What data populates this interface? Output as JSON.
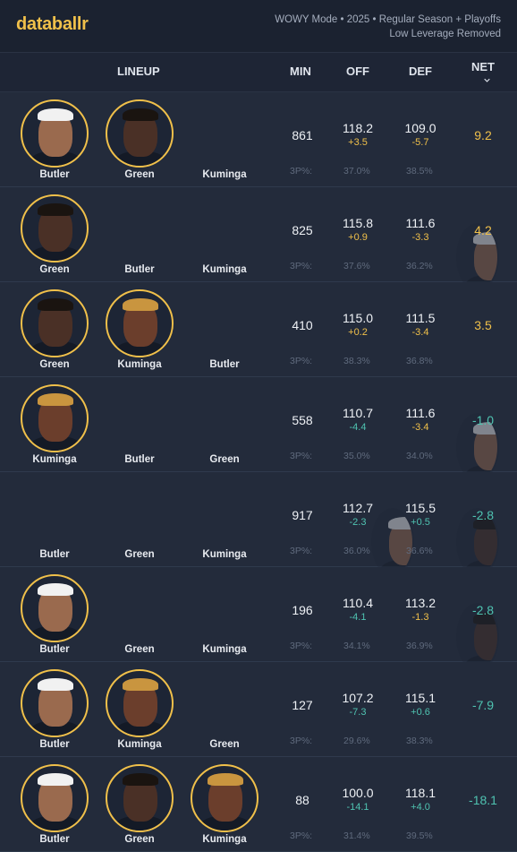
{
  "app": {
    "logo": "databallr",
    "meta_line1": "WOWY Mode • 2025 • Regular Season + Playoffs",
    "meta_line2": "Low Leverage Removed"
  },
  "columns": {
    "lineup": "LINEUP",
    "min": "MIN",
    "off": "OFF",
    "def": "DEF",
    "net": "NET"
  },
  "colors": {
    "accent": "#f0c04a",
    "negative": "#4fc3b1",
    "background": "#1c2331"
  },
  "rows": [
    {
      "players": [
        {
          "name": "Butler",
          "on": true
        },
        {
          "name": "Green",
          "on": true
        },
        {
          "name": "Kuminga",
          "on": false
        }
      ],
      "min": "861",
      "off": "118.2",
      "off_delta": "+3.5",
      "def": "109.0",
      "def_delta": "-5.7",
      "three_label": "3P%:",
      "off_3p": "37.0%",
      "def_3p": "38.5%",
      "net": "9.2",
      "net_sign": "pos"
    },
    {
      "players": [
        {
          "name": "Green",
          "on": true
        },
        {
          "name": "Butler",
          "on": false
        },
        {
          "name": "Kuminga",
          "on": false
        }
      ],
      "min": "825",
      "off": "115.8",
      "off_delta": "+0.9",
      "def": "111.6",
      "def_delta": "-3.3",
      "three_label": "3P%:",
      "off_3p": "37.6%",
      "def_3p": "36.2%",
      "net": "4.2",
      "net_sign": "pos"
    },
    {
      "players": [
        {
          "name": "Green",
          "on": true
        },
        {
          "name": "Kuminga",
          "on": true
        },
        {
          "name": "Butler",
          "on": false
        }
      ],
      "min": "410",
      "off": "115.0",
      "off_delta": "+0.2",
      "def": "111.5",
      "def_delta": "-3.4",
      "three_label": "3P%:",
      "off_3p": "38.3%",
      "def_3p": "36.8%",
      "net": "3.5",
      "net_sign": "pos"
    },
    {
      "players": [
        {
          "name": "Kuminga",
          "on": true
        },
        {
          "name": "Butler",
          "on": false
        },
        {
          "name": "Green",
          "on": false
        }
      ],
      "min": "558",
      "off": "110.7",
      "off_delta": "-4.4",
      "def": "111.6",
      "def_delta": "-3.4",
      "three_label": "3P%:",
      "off_3p": "35.0%",
      "def_3p": "34.0%",
      "net": "-1.0",
      "net_sign": "neg"
    },
    {
      "players": [
        {
          "name": "Butler",
          "on": false
        },
        {
          "name": "Green",
          "on": false
        },
        {
          "name": "Kuminga",
          "on": false
        }
      ],
      "min": "917",
      "off": "112.7",
      "off_delta": "-2.3",
      "def": "115.5",
      "def_delta": "+0.5",
      "three_label": "3P%:",
      "off_3p": "36.0%",
      "def_3p": "36.6%",
      "net": "-2.8",
      "net_sign": "neg"
    },
    {
      "players": [
        {
          "name": "Butler",
          "on": true
        },
        {
          "name": "Green",
          "on": false
        },
        {
          "name": "Kuminga",
          "on": false
        }
      ],
      "min": "196",
      "off": "110.4",
      "off_delta": "-4.1",
      "def": "113.2",
      "def_delta": "-1.3",
      "three_label": "3P%:",
      "off_3p": "34.1%",
      "def_3p": "36.9%",
      "net": "-2.8",
      "net_sign": "neg"
    },
    {
      "players": [
        {
          "name": "Butler",
          "on": true
        },
        {
          "name": "Kuminga",
          "on": true
        },
        {
          "name": "Green",
          "on": false
        }
      ],
      "min": "127",
      "off": "107.2",
      "off_delta": "-7.3",
      "def": "115.1",
      "def_delta": "+0.6",
      "three_label": "3P%:",
      "off_3p": "29.6%",
      "def_3p": "38.3%",
      "net": "-7.9",
      "net_sign": "neg"
    },
    {
      "players": [
        {
          "name": "Butler",
          "on": true
        },
        {
          "name": "Green",
          "on": true
        },
        {
          "name": "Kuminga",
          "on": true
        }
      ],
      "min": "88",
      "off": "100.0",
      "off_delta": "-14.1",
      "def": "118.1",
      "def_delta": "+4.0",
      "three_label": "3P%:",
      "off_3p": "31.4%",
      "def_3p": "39.5%",
      "net": "-18.1",
      "net_sign": "neg"
    }
  ]
}
